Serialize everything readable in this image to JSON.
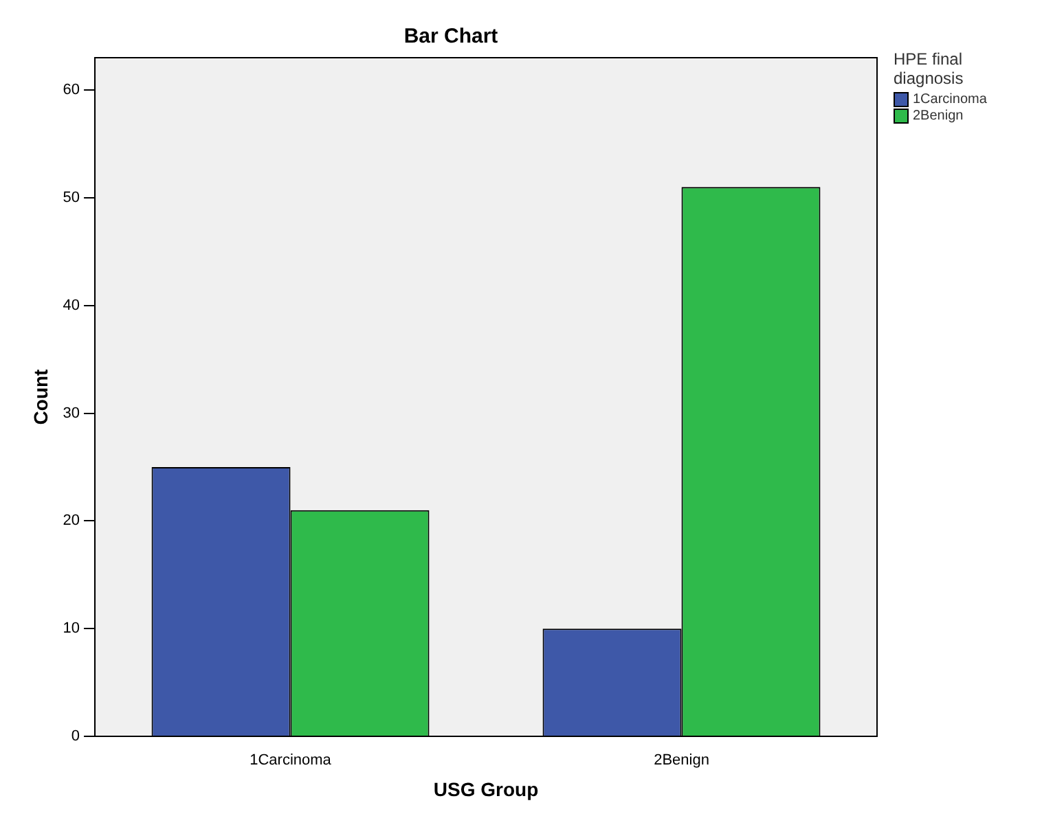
{
  "chart_data": {
    "type": "bar",
    "title": "Bar Chart",
    "xlabel": "USG Group",
    "ylabel": "Count",
    "legend_title": "HPE final diagnosis",
    "categories": [
      "1Carcinoma",
      "2Benign"
    ],
    "series": [
      {
        "name": "1Carcinoma",
        "color": "#3e58a8",
        "values": [
          25,
          10
        ]
      },
      {
        "name": "2Benign",
        "color": "#2fba4b",
        "values": [
          21,
          51
        ]
      }
    ],
    "ylim": [
      0,
      63
    ],
    "yticks": [
      0,
      10,
      20,
      30,
      40,
      50,
      60
    ],
    "grid": false,
    "legend": "top right"
  }
}
